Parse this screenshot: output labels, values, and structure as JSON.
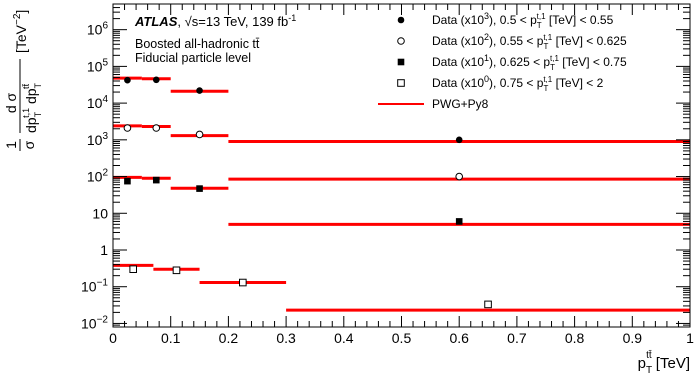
{
  "chart_data": {
    "type": "scatter",
    "xlim": [
      0,
      1
    ],
    "ylim": [
      0.008,
      5000000
    ],
    "yscale": "log",
    "x_ticks": [
      "0",
      "0.1",
      "0.2",
      "0.3",
      "0.4",
      "0.5",
      "0.6",
      "0.7",
      "0.8",
      "0.9",
      "1"
    ],
    "y_ticks": [
      {
        "value": 0.01,
        "base": "10",
        "exp": "−2"
      },
      {
        "value": 0.1,
        "base": "10",
        "exp": "−1"
      },
      {
        "value": 1,
        "base": "1",
        "exp": ""
      },
      {
        "value": 10,
        "base": "10",
        "exp": ""
      },
      {
        "value": 100,
        "base": "10",
        "exp": "2"
      },
      {
        "value": 1000,
        "base": "10",
        "exp": "3"
      },
      {
        "value": 10000,
        "base": "10",
        "exp": "4"
      },
      {
        "value": 100000,
        "base": "10",
        "exp": "5"
      },
      {
        "value": 1000000,
        "base": "10",
        "exp": "6"
      }
    ],
    "xlabel": {
      "main": "p",
      "sub": "T",
      "sup": "tt̄",
      "unit": " [TeV]"
    },
    "ylabel": {
      "one": "1",
      "sigma": "σ",
      "num": "d σ",
      "den_1": "dp",
      "den_1_sub": "T",
      "den_1_sup": "t,1",
      "den_2": "dp",
      "den_2_sub": "T",
      "den_2_sup": "tt̄",
      "unit": "[TeV",
      "unit_sup": "−2",
      "unit_end": "]"
    },
    "annotations": {
      "experiment": "ATLAS",
      "energy": ", √s=13 TeV, 139 fb",
      "lumi_sup": "-1",
      "line2": "Boosted all-hadronic tt̄",
      "line3": "Fiducial particle level"
    },
    "legend": [
      {
        "marker": "filled-circle",
        "text": "Data (x10",
        "scale_sup": "3",
        "range_lo": "0.5",
        "range_hi": "0.55"
      },
      {
        "marker": "open-circle",
        "text": "Data (x10",
        "scale_sup": "2",
        "range_lo": "0.55",
        "range_hi": "0.625"
      },
      {
        "marker": "filled-square",
        "text": "Data (x10",
        "scale_sup": "1",
        "range_lo": "0.625",
        "range_hi": "0.75"
      },
      {
        "marker": "open-square",
        "text": "Data (x10",
        "scale_sup": "0",
        "range_lo": "0.75",
        "range_hi": "2"
      },
      {
        "marker": "line",
        "text": "PWG+Py8"
      }
    ],
    "legend_var": {
      "p": "p",
      "sub": "T",
      "sup": "t,1",
      "unit": " [TeV]"
    },
    "colors": {
      "mc": "#ff0000",
      "data": "#000000"
    },
    "series": [
      {
        "marker": "filled-circle",
        "points": [
          {
            "x": 0.025,
            "y": 42000
          },
          {
            "x": 0.075,
            "y": 43000
          },
          {
            "x": 0.15,
            "y": 22000
          },
          {
            "x": 0.6,
            "y": 1000
          }
        ],
        "mc_bins": [
          {
            "x0": 0,
            "x1": 0.05,
            "y": 48000
          },
          {
            "x0": 0.05,
            "x1": 0.1,
            "y": 46000
          },
          {
            "x0": 0.1,
            "x1": 0.2,
            "y": 21000
          },
          {
            "x0": 0.2,
            "x1": 1.0,
            "y": 900
          }
        ]
      },
      {
        "marker": "open-circle",
        "points": [
          {
            "x": 0.025,
            "y": 2100
          },
          {
            "x": 0.075,
            "y": 2100
          },
          {
            "x": 0.15,
            "y": 1400
          },
          {
            "x": 0.6,
            "y": 100
          }
        ],
        "mc_bins": [
          {
            "x0": 0,
            "x1": 0.05,
            "y": 2400
          },
          {
            "x0": 0.05,
            "x1": 0.1,
            "y": 2300
          },
          {
            "x0": 0.1,
            "x1": 0.2,
            "y": 1300
          },
          {
            "x0": 0.2,
            "x1": 1.0,
            "y": 85
          }
        ]
      },
      {
        "marker": "filled-square",
        "points": [
          {
            "x": 0.025,
            "y": 75
          },
          {
            "x": 0.075,
            "y": 80
          },
          {
            "x": 0.15,
            "y": 47
          },
          {
            "x": 0.6,
            "y": 6
          }
        ],
        "mc_bins": [
          {
            "x0": 0,
            "x1": 0.05,
            "y": 95
          },
          {
            "x0": 0.05,
            "x1": 0.1,
            "y": 90
          },
          {
            "x0": 0.1,
            "x1": 0.2,
            "y": 48
          },
          {
            "x0": 0.2,
            "x1": 1.0,
            "y": 5
          }
        ]
      },
      {
        "marker": "open-square",
        "points": [
          {
            "x": 0.035,
            "y": 0.3
          },
          {
            "x": 0.11,
            "y": 0.28
          },
          {
            "x": 0.225,
            "y": 0.13
          },
          {
            "x": 0.65,
            "y": 0.033
          }
        ],
        "mc_bins": [
          {
            "x0": 0,
            "x1": 0.07,
            "y": 0.38
          },
          {
            "x0": 0.07,
            "x1": 0.15,
            "y": 0.3
          },
          {
            "x0": 0.15,
            "x1": 0.3,
            "y": 0.13
          },
          {
            "x0": 0.3,
            "x1": 1.0,
            "y": 0.023
          }
        ]
      }
    ]
  }
}
